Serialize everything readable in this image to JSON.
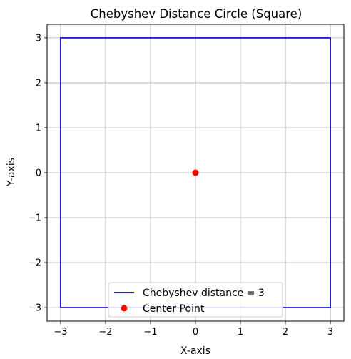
{
  "chart_data": {
    "type": "line",
    "title": "Chebyshev Distance Circle (Square)",
    "xlabel": "X-axis",
    "ylabel": "Y-axis",
    "xlim": [
      -3.3,
      3.3
    ],
    "ylim": [
      -3.3,
      3.3
    ],
    "xticks": [
      -3,
      -2,
      -1,
      0,
      1,
      2,
      3
    ],
    "yticks": [
      -3,
      -2,
      -1,
      0,
      1,
      2,
      3
    ],
    "xtick_labels": [
      "−3",
      "−2",
      "−1",
      "0",
      "1",
      "2",
      "3"
    ],
    "ytick_labels": [
      "−3",
      "−2",
      "−1",
      "0",
      "1",
      "2",
      "3"
    ],
    "grid": true,
    "legend_position": "lower center",
    "series": [
      {
        "name": "Chebyshev distance = 3",
        "kind": "line",
        "color": "#0000cc",
        "x": [
          -3,
          3,
          3,
          -3,
          -3
        ],
        "y": [
          -3,
          -3,
          3,
          3,
          -3
        ]
      },
      {
        "name": "Center Point",
        "kind": "scatter",
        "color": "#ff0000",
        "x": [
          0
        ],
        "y": [
          0
        ]
      }
    ]
  }
}
